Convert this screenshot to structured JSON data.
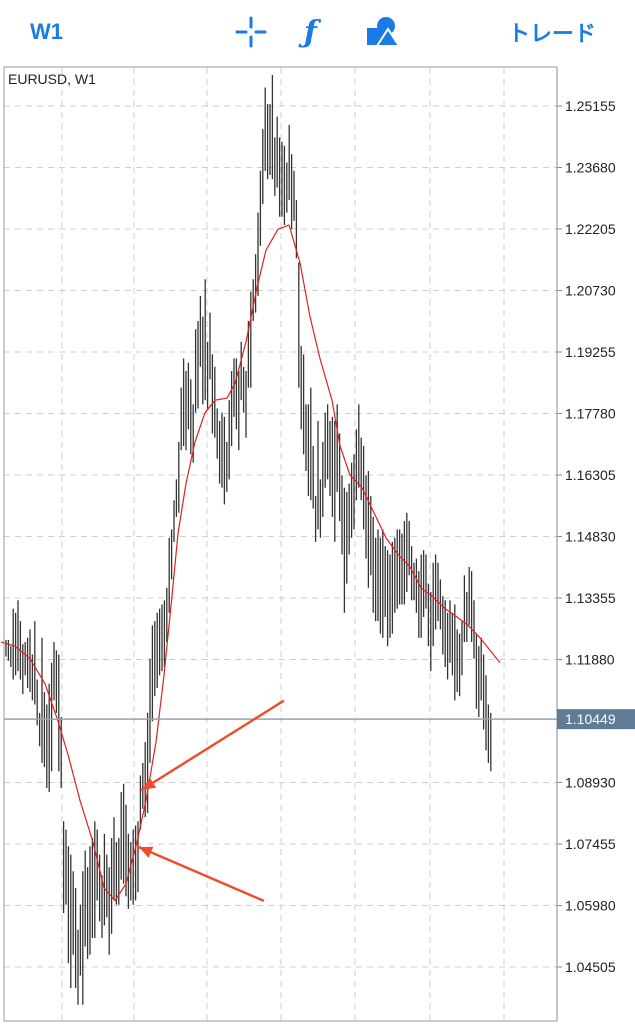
{
  "toolbar": {
    "timeframe_label": "W1",
    "function_label": "ƒ",
    "trade_label": "トレード",
    "crosshair_icon": "crosshair-icon",
    "function_icon": "function-icon",
    "objects_icon": "shapes-icon"
  },
  "colors": {
    "accent": "#1a7ae6",
    "bars": "#333333",
    "moving_average": "#e02020",
    "annotation_arrows": "#f04a2a",
    "current_price_line": "#8fa4b8",
    "current_price_badge": "#5f7b96"
  },
  "chart_data": {
    "type": "ohlc",
    "title": "EURUSD, W1",
    "symbol": "EURUSD",
    "timeframe": "W1",
    "price_ticks": [
      "1.25155",
      "1.23680",
      "1.22205",
      "1.20730",
      "1.19255",
      "1.17780",
      "1.16305",
      "1.14830",
      "1.13355",
      "1.11880",
      "1.08930",
      "1.07455",
      "1.05980",
      "1.04505"
    ],
    "current_price": "1.10449",
    "current_price_value": 1.10449,
    "ylim": [
      1.0345,
      1.2594
    ],
    "grid": true,
    "bars": [
      [
        1.1235,
        1.1195
      ],
      [
        1.1235,
        1.1185
      ],
      [
        1.122,
        1.117
      ],
      [
        1.131,
        1.114
      ],
      [
        1.13,
        1.115
      ],
      [
        1.133,
        1.116
      ],
      [
        1.128,
        1.114
      ],
      [
        1.1225,
        1.1105
      ],
      [
        1.123,
        1.115
      ],
      [
        1.124,
        1.112
      ],
      [
        1.126,
        1.111
      ],
      [
        1.12,
        1.109
      ],
      [
        1.128,
        1.108
      ],
      [
        1.114,
        1.103
      ],
      [
        1.106,
        1.098
      ],
      [
        1.124,
        1.094
      ],
      [
        1.111,
        1.093
      ],
      [
        1.108,
        1.088
      ],
      [
        1.113,
        1.087
      ],
      [
        1.118,
        1.092
      ],
      [
        1.123,
        1.109
      ],
      [
        1.121,
        1.106
      ],
      [
        1.12,
        1.092
      ],
      [
        1.105,
        1.088
      ],
      [
        1.08,
        1.058
      ],
      [
        1.078,
        1.06
      ],
      [
        1.074,
        1.046
      ],
      [
        1.072,
        1.04
      ],
      [
        1.068,
        1.048
      ],
      [
        1.064,
        1.04
      ],
      [
        1.054,
        1.036
      ],
      [
        1.06,
        1.043
      ],
      [
        1.068,
        1.036
      ],
      [
        1.073,
        1.05
      ],
      [
        1.069,
        1.047
      ],
      [
        1.074,
        1.048
      ],
      [
        1.076,
        1.052
      ],
      [
        1.08,
        1.052
      ],
      [
        1.078,
        1.061
      ],
      [
        1.072,
        1.056
      ],
      [
        1.067,
        1.052
      ],
      [
        1.077,
        1.055
      ],
      [
        1.072,
        1.057
      ],
      [
        1.069,
        1.048
      ],
      [
        1.076,
        1.053
      ],
      [
        1.081,
        1.061
      ],
      [
        1.075,
        1.06
      ],
      [
        1.076,
        1.06
      ],
      [
        1.087,
        1.066
      ],
      [
        1.089,
        1.065
      ],
      [
        1.084,
        1.062
      ],
      [
        1.077,
        1.059
      ],
      [
        1.075,
        1.061
      ],
      [
        1.078,
        1.06
      ],
      [
        1.079,
        1.061
      ],
      [
        1.08,
        1.063
      ],
      [
        1.091,
        1.078
      ],
      [
        1.094,
        1.083
      ],
      [
        1.099,
        1.081
      ],
      [
        1.106,
        1.082
      ],
      [
        1.119,
        1.094
      ],
      [
        1.127,
        1.104
      ],
      [
        1.128,
        1.11
      ],
      [
        1.13,
        1.112
      ],
      [
        1.131,
        1.115
      ],
      [
        1.132,
        1.116
      ],
      [
        1.133,
        1.117
      ],
      [
        1.136,
        1.123
      ],
      [
        1.148,
        1.13
      ],
      [
        1.15,
        1.138
      ],
      [
        1.157,
        1.147
      ],
      [
        1.162,
        1.153
      ],
      [
        1.171,
        1.154
      ],
      [
        1.184,
        1.169
      ],
      [
        1.191,
        1.17
      ],
      [
        1.188,
        1.169
      ],
      [
        1.19,
        1.174
      ],
      [
        1.186,
        1.168
      ],
      [
        1.18,
        1.166
      ],
      [
        1.198,
        1.178
      ],
      [
        1.2,
        1.179
      ],
      [
        1.206,
        1.189
      ],
      [
        1.201,
        1.18
      ],
      [
        1.21,
        1.181
      ],
      [
        1.195,
        1.179
      ],
      [
        1.202,
        1.186
      ],
      [
        1.192,
        1.173
      ],
      [
        1.189,
        1.172
      ],
      [
        1.179,
        1.167
      ],
      [
        1.176,
        1.161
      ],
      [
        1.178,
        1.16
      ],
      [
        1.177,
        1.156
      ],
      [
        1.171,
        1.159
      ],
      [
        1.181,
        1.162
      ],
      [
        1.188,
        1.17
      ],
      [
        1.191,
        1.177
      ],
      [
        1.191,
        1.174
      ],
      [
        1.188,
        1.169
      ],
      [
        1.195,
        1.181
      ],
      [
        1.189,
        1.178
      ],
      [
        1.188,
        1.172
      ],
      [
        1.2,
        1.184
      ],
      [
        1.207,
        1.184
      ],
      [
        1.21,
        1.2
      ],
      [
        1.216,
        1.202
      ],
      [
        1.226,
        1.206
      ],
      [
        1.236,
        1.218
      ],
      [
        1.246,
        1.228
      ],
      [
        1.256,
        1.236
      ],
      [
        1.252,
        1.234
      ],
      [
        1.252,
        1.235
      ],
      [
        1.259,
        1.234
      ],
      [
        1.244,
        1.23
      ],
      [
        1.249,
        1.232
      ],
      [
        1.244,
        1.225
      ],
      [
        1.243,
        1.225
      ],
      [
        1.242,
        1.223
      ],
      [
        1.238,
        1.226
      ],
      [
        1.247,
        1.229
      ],
      [
        1.24,
        1.222
      ],
      [
        1.236,
        1.224
      ],
      [
        1.229,
        1.215
      ],
      [
        1.214,
        1.184
      ],
      [
        1.194,
        1.174
      ],
      [
        1.192,
        1.168
      ],
      [
        1.18,
        1.164
      ],
      [
        1.18,
        1.158
      ],
      [
        1.184,
        1.157
      ],
      [
        1.17,
        1.155
      ],
      [
        1.158,
        1.147
      ],
      [
        1.176,
        1.15
      ],
      [
        1.162,
        1.148
      ],
      [
        1.171,
        1.153
      ],
      [
        1.178,
        1.16
      ],
      [
        1.18,
        1.162
      ],
      [
        1.176,
        1.158
      ],
      [
        1.177,
        1.153
      ],
      [
        1.176,
        1.147
      ],
      [
        1.18,
        1.159
      ],
      [
        1.173,
        1.152
      ],
      [
        1.163,
        1.144
      ],
      [
        1.16,
        1.13
      ],
      [
        1.159,
        1.137
      ],
      [
        1.161,
        1.144
      ],
      [
        1.166,
        1.148
      ],
      [
        1.168,
        1.15
      ],
      [
        1.174,
        1.157
      ],
      [
        1.18,
        1.16
      ],
      [
        1.172,
        1.157
      ],
      [
        1.17,
        1.15
      ],
      [
        1.163,
        1.143
      ],
      [
        1.164,
        1.136
      ],
      [
        1.158,
        1.139
      ],
      [
        1.153,
        1.13
      ],
      [
        1.148,
        1.128
      ],
      [
        1.15,
        1.128
      ],
      [
        1.148,
        1.125
      ],
      [
        1.15,
        1.124
      ],
      [
        1.146,
        1.129
      ],
      [
        1.145,
        1.122
      ],
      [
        1.144,
        1.124
      ],
      [
        1.147,
        1.125
      ],
      [
        1.148,
        1.13
      ],
      [
        1.15,
        1.131
      ],
      [
        1.15,
        1.132
      ],
      [
        1.149,
        1.132
      ],
      [
        1.152,
        1.132
      ],
      [
        1.154,
        1.135
      ],
      [
        1.152,
        1.139
      ],
      [
        1.146,
        1.133
      ],
      [
        1.142,
        1.133
      ],
      [
        1.143,
        1.13
      ],
      [
        1.14,
        1.124
      ],
      [
        1.144,
        1.124
      ],
      [
        1.145,
        1.129
      ],
      [
        1.144,
        1.131
      ],
      [
        1.137,
        1.122
      ],
      [
        1.135,
        1.116
      ],
      [
        1.142,
        1.122
      ],
      [
        1.144,
        1.126
      ],
      [
        1.142,
        1.128
      ],
      [
        1.138,
        1.126
      ],
      [
        1.134,
        1.12
      ],
      [
        1.133,
        1.117
      ],
      [
        1.13,
        1.114
      ],
      [
        1.133,
        1.118
      ],
      [
        1.13,
        1.115
      ],
      [
        1.132,
        1.109
      ],
      [
        1.126,
        1.111
      ],
      [
        1.125,
        1.11
      ],
      [
        1.128,
        1.115
      ],
      [
        1.139,
        1.123
      ],
      [
        1.135,
        1.123
      ],
      [
        1.141,
        1.127
      ],
      [
        1.14,
        1.123
      ],
      [
        1.133,
        1.119
      ],
      [
        1.125,
        1.107
      ],
      [
        1.122,
        1.105
      ],
      [
        1.124,
        1.109
      ],
      [
        1.12,
        1.102
      ],
      [
        1.115,
        1.097
      ],
      [
        1.108,
        1.094
      ],
      [
        1.106,
        1.092
      ]
    ],
    "moving_average": [
      [
        1,
        1.123
      ],
      [
        15,
        1.122
      ],
      [
        30,
        1.119
      ],
      [
        45,
        1.113
      ],
      [
        58,
        1.104
      ],
      [
        68,
        1.096
      ],
      [
        80,
        1.085
      ],
      [
        93,
        1.075
      ],
      [
        104,
        1.064
      ],
      [
        115,
        1.061
      ],
      [
        126,
        1.065
      ],
      [
        137,
        1.075
      ],
      [
        146,
        1.085
      ],
      [
        156,
        1.099
      ],
      [
        164,
        1.115
      ],
      [
        172,
        1.134
      ],
      [
        178,
        1.149
      ],
      [
        186,
        1.161
      ],
      [
        195,
        1.171
      ],
      [
        205,
        1.178
      ],
      [
        215,
        1.181
      ],
      [
        227,
        1.1815
      ],
      [
        235,
        1.185
      ],
      [
        246,
        1.195
      ],
      [
        257,
        1.208
      ],
      [
        266,
        1.217
      ],
      [
        278,
        1.222
      ],
      [
        289,
        1.223
      ],
      [
        300,
        1.214
      ],
      [
        310,
        1.201
      ],
      [
        320,
        1.191
      ],
      [
        332,
        1.181
      ],
      [
        340,
        1.17
      ],
      [
        350,
        1.163
      ],
      [
        362,
        1.16
      ],
      [
        374,
        1.154
      ],
      [
        386,
        1.148
      ],
      [
        398,
        1.144
      ],
      [
        410,
        1.141
      ],
      [
        421,
        1.136
      ],
      [
        432,
        1.134
      ],
      [
        445,
        1.131
      ],
      [
        457,
        1.129
      ],
      [
        468,
        1.127
      ],
      [
        480,
        1.124
      ],
      [
        490,
        1.121
      ],
      [
        500,
        1.118
      ]
    ],
    "annotations": [
      {
        "type": "arrow",
        "from": [
          283,
          1.1088
        ],
        "to": [
          142,
          1.0876
        ]
      },
      {
        "type": "arrow",
        "from": [
          263,
          1.061
        ],
        "to": [
          139,
          1.0738
        ]
      }
    ]
  }
}
